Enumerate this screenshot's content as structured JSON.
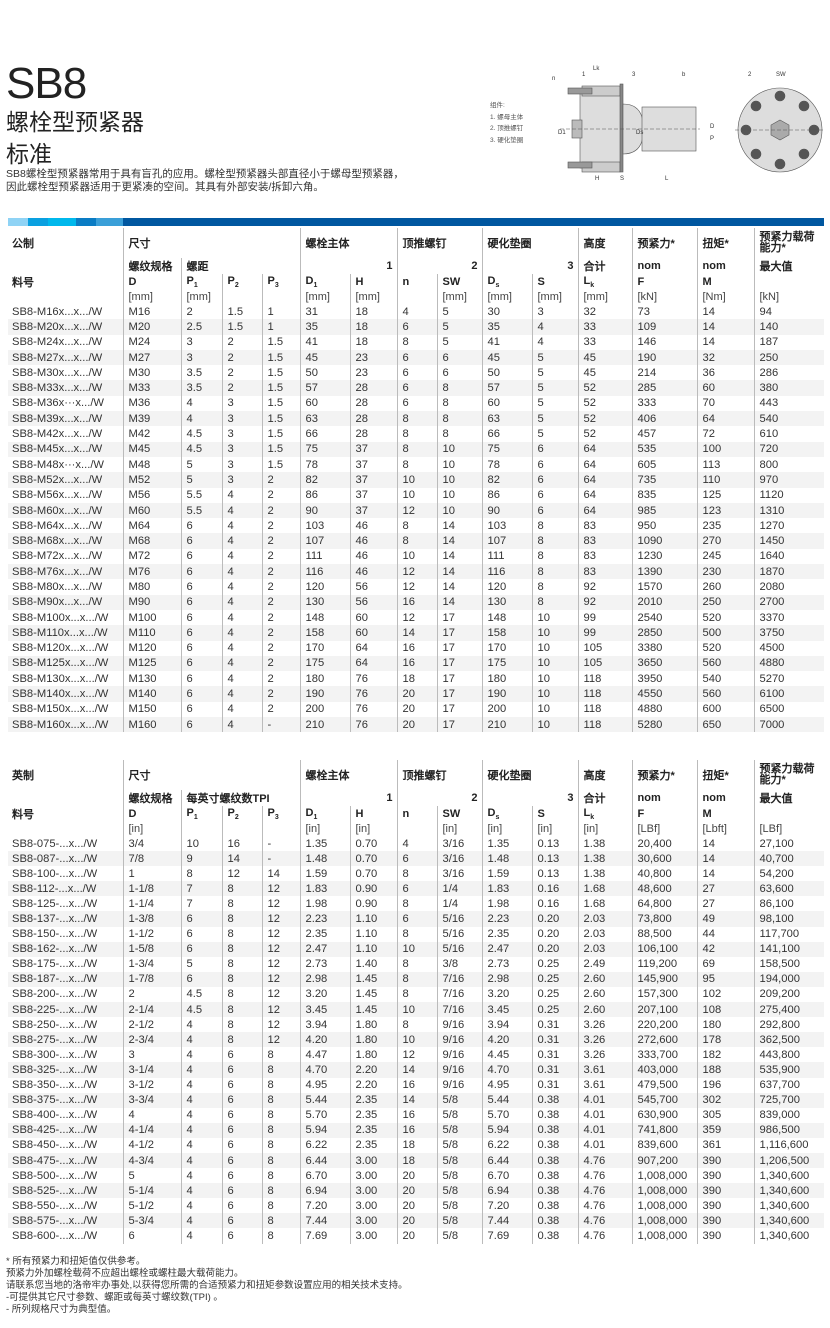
{
  "header": {
    "title": "SB8",
    "subtitle1": "螺栓型预紧器",
    "subtitle2": "标准",
    "description": [
      "SB8螺栓型预紧器常用于具有盲孔的应用。螺栓型预紧器头部直径小于螺母型预紧器，",
      "因此螺栓型预紧器适用于更紧凑的空间。其具有外部安装/拆卸六角。"
    ]
  },
  "diagram": {
    "legend_title": "组件:",
    "legend": [
      "1.  螺母主体",
      "2.  顶推螺钉",
      "3.  硬化垫圈"
    ],
    "labels": {
      "lk": "Lk",
      "one": "1",
      "three": "3",
      "b": "b",
      "n": "n",
      "d1": "D1",
      "ds": "Ds",
      "h": "H",
      "s": "S",
      "l": "L",
      "two": "2",
      "sw": "SW",
      "d": "D",
      "p": "P"
    }
  },
  "colors": {
    "accent": "#0057a0",
    "bar": [
      "#8fd3f5",
      "#0aa0e0",
      "#00b8ec",
      "#0a7cc4",
      "#3a9fd8",
      "#0057a0"
    ],
    "row_shade": "#f3f3f3"
  },
  "metric": {
    "header": {
      "system": "公制",
      "size": "尺寸",
      "body": "螺栓主体",
      "pusher": "顶推螺钉",
      "washer": "硬化垫圈",
      "height": "高度",
      "preload": "预紧力*",
      "torque": "扭矩*",
      "capacity": "预紧力载荷能力*",
      "thread": "螺纹规格",
      "pitch": "螺距",
      "g1": "1",
      "g2": "2",
      "g3": "3",
      "total": "合计",
      "nom_f": "nom",
      "nom_m": "nom",
      "max": "最大值",
      "part": "料号",
      "cols": [
        "D",
        "P",
        "P",
        "P",
        "D",
        "H",
        "n",
        "SW",
        "D",
        "S",
        "L",
        "F",
        "M",
        ""
      ],
      "subs": [
        "",
        "1",
        "2",
        "3",
        "1",
        "",
        "",
        "",
        "s",
        "",
        "k",
        "",
        "",
        ""
      ],
      "units": [
        "",
        "[mm]",
        "[mm]",
        "",
        "",
        "[mm]",
        "[mm]",
        "",
        "[mm]",
        "[mm]",
        "[mm]",
        "[mm]",
        "[kN]",
        "[Nm]",
        "[kN]"
      ]
    },
    "rows": [
      [
        "SB8-M16x...x.../W",
        "M16",
        "2",
        "1.5",
        "1",
        "31",
        "18",
        "4",
        "5",
        "30",
        "3",
        "32",
        "73",
        "14",
        "94"
      ],
      [
        "SB8-M20x...x.../W",
        "M20",
        "2.5",
        "1.5",
        "1",
        "35",
        "18",
        "6",
        "5",
        "35",
        "4",
        "33",
        "109",
        "14",
        "140"
      ],
      [
        "SB8-M24x...x.../W",
        "M24",
        "3",
        "2",
        "1.5",
        "41",
        "18",
        "8",
        "5",
        "41",
        "4",
        "33",
        "146",
        "14",
        "187"
      ],
      [
        "SB8-M27x...x.../W",
        "M27",
        "3",
        "2",
        "1.5",
        "45",
        "23",
        "6",
        "6",
        "45",
        "5",
        "45",
        "190",
        "32",
        "250"
      ],
      [
        "SB8-M30x...x.../W",
        "M30",
        "3.5",
        "2",
        "1.5",
        "50",
        "23",
        "6",
        "6",
        "50",
        "5",
        "45",
        "214",
        "36",
        "286"
      ],
      [
        "SB8-M33x...x.../W",
        "M33",
        "3.5",
        "2",
        "1.5",
        "57",
        "28",
        "6",
        "8",
        "57",
        "5",
        "52",
        "285",
        "60",
        "380"
      ],
      [
        "SB8-M36x···x.../W",
        "M36",
        "4",
        "3",
        "1.5",
        "60",
        "28",
        "6",
        "8",
        "60",
        "5",
        "52",
        "333",
        "70",
        "443"
      ],
      [
        "SB8-M39x...x.../W",
        "M39",
        "4",
        "3",
        "1.5",
        "63",
        "28",
        "8",
        "8",
        "63",
        "5",
        "52",
        "406",
        "64",
        "540"
      ],
      [
        "SB8-M42x...x.../W",
        "M42",
        "4.5",
        "3",
        "1.5",
        "66",
        "28",
        "8",
        "8",
        "66",
        "5",
        "52",
        "457",
        "72",
        "610"
      ],
      [
        "SB8-M45x...x.../W",
        "M45",
        "4.5",
        "3",
        "1.5",
        "75",
        "37",
        "8",
        "10",
        "75",
        "6",
        "64",
        "535",
        "100",
        "720"
      ],
      [
        "SB8-M48x···x.../W",
        "M48",
        "5",
        "3",
        "1.5",
        "78",
        "37",
        "8",
        "10",
        "78",
        "6",
        "64",
        "605",
        "113",
        "800"
      ],
      [
        "SB8-M52x...x.../W",
        "M52",
        "5",
        "3",
        "2",
        "82",
        "37",
        "10",
        "10",
        "82",
        "6",
        "64",
        "735",
        "110",
        "970"
      ],
      [
        "SB8-M56x...x.../W",
        "M56",
        "5.5",
        "4",
        "2",
        "86",
        "37",
        "10",
        "10",
        "86",
        "6",
        "64",
        "835",
        "125",
        "1120"
      ],
      [
        "SB8-M60x...x.../W",
        "M60",
        "5.5",
        "4",
        "2",
        "90",
        "37",
        "12",
        "10",
        "90",
        "6",
        "64",
        "985",
        "123",
        "1310"
      ],
      [
        "SB8-M64x...x.../W",
        "M64",
        "6",
        "4",
        "2",
        "103",
        "46",
        "8",
        "14",
        "103",
        "8",
        "83",
        "950",
        "235",
        "1270"
      ],
      [
        "SB8-M68x...x.../W",
        "M68",
        "6",
        "4",
        "2",
        "107",
        "46",
        "8",
        "14",
        "107",
        "8",
        "83",
        "1090",
        "270",
        "1450"
      ],
      [
        "SB8-M72x...x.../W",
        "M72",
        "6",
        "4",
        "2",
        "111",
        "46",
        "10",
        "14",
        "111",
        "8",
        "83",
        "1230",
        "245",
        "1640"
      ],
      [
        "SB8-M76x...x.../W",
        "M76",
        "6",
        "4",
        "2",
        "116",
        "46",
        "12",
        "14",
        "116",
        "8",
        "83",
        "1390",
        "230",
        "1870"
      ],
      [
        "SB8-M80x...x.../W",
        "M80",
        "6",
        "4",
        "2",
        "120",
        "56",
        "12",
        "14",
        "120",
        "8",
        "92",
        "1570",
        "260",
        "2080"
      ],
      [
        "SB8-M90x...x.../W",
        "M90",
        "6",
        "4",
        "2",
        "130",
        "56",
        "16",
        "14",
        "130",
        "8",
        "92",
        "2010",
        "250",
        "2700"
      ],
      [
        "SB8-M100x...x.../W",
        "M100",
        "6",
        "4",
        "2",
        "148",
        "60",
        "12",
        "17",
        "148",
        "10",
        "99",
        "2540",
        "520",
        "3370"
      ],
      [
        "SB8-M110x...x.../W",
        "M110",
        "6",
        "4",
        "2",
        "158",
        "60",
        "14",
        "17",
        "158",
        "10",
        "99",
        "2850",
        "500",
        "3750"
      ],
      [
        "SB8-M120x...x.../W",
        "M120",
        "6",
        "4",
        "2",
        "170",
        "64",
        "16",
        "17",
        "170",
        "10",
        "105",
        "3380",
        "520",
        "4500"
      ],
      [
        "SB8-M125x...x.../W",
        "M125",
        "6",
        "4",
        "2",
        "175",
        "64",
        "16",
        "17",
        "175",
        "10",
        "105",
        "3650",
        "560",
        "4880"
      ],
      [
        "SB8-M130x...x.../W",
        "M130",
        "6",
        "4",
        "2",
        "180",
        "76",
        "18",
        "17",
        "180",
        "10",
        "118",
        "3950",
        "540",
        "5270"
      ],
      [
        "SB8-M140x...x.../W",
        "M140",
        "6",
        "4",
        "2",
        "190",
        "76",
        "20",
        "17",
        "190",
        "10",
        "118",
        "4550",
        "560",
        "6100"
      ],
      [
        "SB8-M150x...x.../W",
        "M150",
        "6",
        "4",
        "2",
        "200",
        "76",
        "20",
        "17",
        "200",
        "10",
        "118",
        "4880",
        "600",
        "6500"
      ],
      [
        "SB8-M160x...x.../W",
        "M160",
        "6",
        "4",
        "-",
        "210",
        "76",
        "20",
        "17",
        "210",
        "10",
        "118",
        "5280",
        "650",
        "7000"
      ]
    ]
  },
  "imperial": {
    "header": {
      "system": "英制",
      "size": "尺寸",
      "body": "螺栓主体",
      "pusher": "顶推螺钉",
      "washer": "硬化垫圈",
      "height": "高度",
      "preload": "预紧力*",
      "torque": "扭矩*",
      "capacity": "预紧力载荷能力*",
      "thread": "螺纹规格",
      "pitch": "每英寸螺纹数TPI",
      "g1": "1",
      "g2": "2",
      "g3": "3",
      "total": "合计",
      "nom_f": "nom",
      "nom_m": "nom",
      "max": "最大值",
      "part": "料号",
      "cols": [
        "D",
        "P",
        "P",
        "P",
        "D",
        "H",
        "n",
        "SW",
        "D",
        "S",
        "L",
        "F",
        "M",
        ""
      ],
      "subs": [
        "",
        "1",
        "2",
        "3",
        "1",
        "",
        "",
        "",
        "s",
        "",
        "k",
        "",
        "",
        ""
      ],
      "units": [
        "",
        "[in]",
        "",
        "",
        "",
        "[in]",
        "[in]",
        "",
        "[in]",
        "[in]",
        "[in]",
        "[in]",
        "[LBf]",
        "[Lbft]",
        "[LBf]"
      ]
    },
    "rows": [
      [
        "SB8-075-...x.../W",
        "3/4",
        "10",
        "16",
        "-",
        "1.35",
        "0.70",
        "4",
        "3/16",
        "1.35",
        "0.13",
        "1.38",
        "20,400",
        "14",
        "27,100"
      ],
      [
        "SB8-087-...x.../W",
        "7/8",
        "9",
        "14",
        "-",
        "1.48",
        "0.70",
        "6",
        "3/16",
        "1.48",
        "0.13",
        "1.38",
        "30,600",
        "14",
        "40,700"
      ],
      [
        "SB8-100-...x.../W",
        "1",
        "8",
        "12",
        "14",
        "1.59",
        "0.70",
        "8",
        "3/16",
        "1.59",
        "0.13",
        "1.38",
        "40,800",
        "14",
        "54,200"
      ],
      [
        "SB8-112-...x.../W",
        "1-1/8",
        "7",
        "8",
        "12",
        "1.83",
        "0.90",
        "6",
        "1/4",
        "1.83",
        "0.16",
        "1.68",
        "48,600",
        "27",
        "63,600"
      ],
      [
        "SB8-125-...x.../W",
        "1-1/4",
        "7",
        "8",
        "12",
        "1.98",
        "0.90",
        "8",
        "1/4",
        "1.98",
        "0.16",
        "1.68",
        "64,800",
        "27",
        "86,100"
      ],
      [
        "SB8-137-...x.../W",
        "1-3/8",
        "6",
        "8",
        "12",
        "2.23",
        "1.10",
        "6",
        "5/16",
        "2.23",
        "0.20",
        "2.03",
        "73,800",
        "49",
        "98,100"
      ],
      [
        "SB8-150-...x.../W",
        "1-1/2",
        "6",
        "8",
        "12",
        "2.35",
        "1.10",
        "8",
        "5/16",
        "2.35",
        "0.20",
        "2.03",
        "88,500",
        "44",
        "117,700"
      ],
      [
        "SB8-162-...x.../W",
        "1-5/8",
        "6",
        "8",
        "12",
        "2.47",
        "1.10",
        "10",
        "5/16",
        "2.47",
        "0.20",
        "2.03",
        "106,100",
        "42",
        "141,100"
      ],
      [
        "SB8-175-...x.../W",
        "1-3/4",
        "5",
        "8",
        "12",
        "2.73",
        "1.40",
        "8",
        "3/8",
        "2.73",
        "0.25",
        "2.49",
        "119,200",
        "69",
        "158,500"
      ],
      [
        "SB8-187-...x.../W",
        "1-7/8",
        "6",
        "8",
        "12",
        "2.98",
        "1.45",
        "8",
        "7/16",
        "2.98",
        "0.25",
        "2.60",
        "145,900",
        "95",
        "194,000"
      ],
      [
        "SB8-200-...x.../W",
        "2",
        "4.5",
        "8",
        "12",
        "3.20",
        "1.45",
        "8",
        "7/16",
        "3.20",
        "0.25",
        "2.60",
        "157,300",
        "102",
        "209,200"
      ],
      [
        "SB8-225-...x.../W",
        "2-1/4",
        "4.5",
        "8",
        "12",
        "3.45",
        "1.45",
        "10",
        "7/16",
        "3.45",
        "0.25",
        "2.60",
        "207,100",
        "108",
        "275,400"
      ],
      [
        "SB8-250-...x.../W",
        "2-1/2",
        "4",
        "8",
        "12",
        "3.94",
        "1.80",
        "8",
        "9/16",
        "3.94",
        "0.31",
        "3.26",
        "220,200",
        "180",
        "292,800"
      ],
      [
        "SB8-275-...x.../W",
        "2-3/4",
        "4",
        "8",
        "12",
        "4.20",
        "1.80",
        "10",
        "9/16",
        "4.20",
        "0.31",
        "3.26",
        "272,600",
        "178",
        "362,500"
      ],
      [
        "SB8-300-...x.../W",
        "3",
        "4",
        "6",
        "8",
        "4.47",
        "1.80",
        "12",
        "9/16",
        "4.45",
        "0.31",
        "3.26",
        "333,700",
        "182",
        "443,800"
      ],
      [
        "SB8-325-...x.../W",
        "3-1/4",
        "4",
        "6",
        "8",
        "4.70",
        "2.20",
        "14",
        "9/16",
        "4.70",
        "0.31",
        "3.61",
        "403,000",
        "188",
        "535,900"
      ],
      [
        "SB8-350-...x.../W",
        "3-1/2",
        "4",
        "6",
        "8",
        "4.95",
        "2.20",
        "16",
        "9/16",
        "4.95",
        "0.31",
        "3.61",
        "479,500",
        "196",
        "637,700"
      ],
      [
        "SB8-375-...x.../W",
        "3-3/4",
        "4",
        "6",
        "8",
        "5.44",
        "2.35",
        "14",
        "5/8",
        "5.44",
        "0.38",
        "4.01",
        "545,700",
        "302",
        "725,700"
      ],
      [
        "SB8-400-...x.../W",
        "4",
        "4",
        "6",
        "8",
        "5.70",
        "2.35",
        "16",
        "5/8",
        "5.70",
        "0.38",
        "4.01",
        "630,900",
        "305",
        "839,000"
      ],
      [
        "SB8-425-...x.../W",
        "4-1/4",
        "4",
        "6",
        "8",
        "5.94",
        "2.35",
        "16",
        "5/8",
        "5.94",
        "0.38",
        "4.01",
        "741,800",
        "359",
        "986,500"
      ],
      [
        "SB8-450-...x.../W",
        "4-1/2",
        "4",
        "6",
        "8",
        "6.22",
        "2.35",
        "18",
        "5/8",
        "6.22",
        "0.38",
        "4.01",
        "839,600",
        "361",
        "1,116,600"
      ],
      [
        "SB8-475-...x.../W",
        "4-3/4",
        "4",
        "6",
        "8",
        "6.44",
        "3.00",
        "18",
        "5/8",
        "6.44",
        "0.38",
        "4.76",
        "907,200",
        "390",
        "1,206,500"
      ],
      [
        "SB8-500-...x.../W",
        "5",
        "4",
        "6",
        "8",
        "6.70",
        "3.00",
        "20",
        "5/8",
        "6.70",
        "0.38",
        "4.76",
        "1,008,000",
        "390",
        "1,340,600"
      ],
      [
        "SB8-525-...x.../W",
        "5-1/4",
        "4",
        "6",
        "8",
        "6.94",
        "3.00",
        "20",
        "5/8",
        "6.94",
        "0.38",
        "4.76",
        "1,008,000",
        "390",
        "1,340,600"
      ],
      [
        "SB8-550-...x.../W",
        "5-1/2",
        "4",
        "6",
        "8",
        "7.20",
        "3.00",
        "20",
        "5/8",
        "7.20",
        "0.38",
        "4.76",
        "1,008,000",
        "390",
        "1,340,600"
      ],
      [
        "SB8-575-...x.../W",
        "5-3/4",
        "4",
        "6",
        "8",
        "7.44",
        "3.00",
        "20",
        "5/8",
        "7.44",
        "0.38",
        "4.76",
        "1,008,000",
        "390",
        "1,340,600"
      ],
      [
        "SB8-600-...x.../W",
        "6",
        "4",
        "6",
        "8",
        "7.69",
        "3.00",
        "20",
        "5/8",
        "7.69",
        "0.38",
        "4.76",
        "1,008,000",
        "390",
        "1,340,600"
      ]
    ]
  },
  "notes": [
    "* 所有预紧力和扭矩值仅供参考。",
    " 预紧力外加螺栓载荷不应超出螺栓或螺柱最大载荷能力。",
    " 请联系您当地的洛帝牢办事处,以获得您所需的合适预紧力和扭矩参数设置应用的相关技术支持。",
    "-可提供其它尺寸参数、螺距或每英寸螺纹数(TPI) 。",
    "- 所列规格尺寸为典型值。"
  ]
}
